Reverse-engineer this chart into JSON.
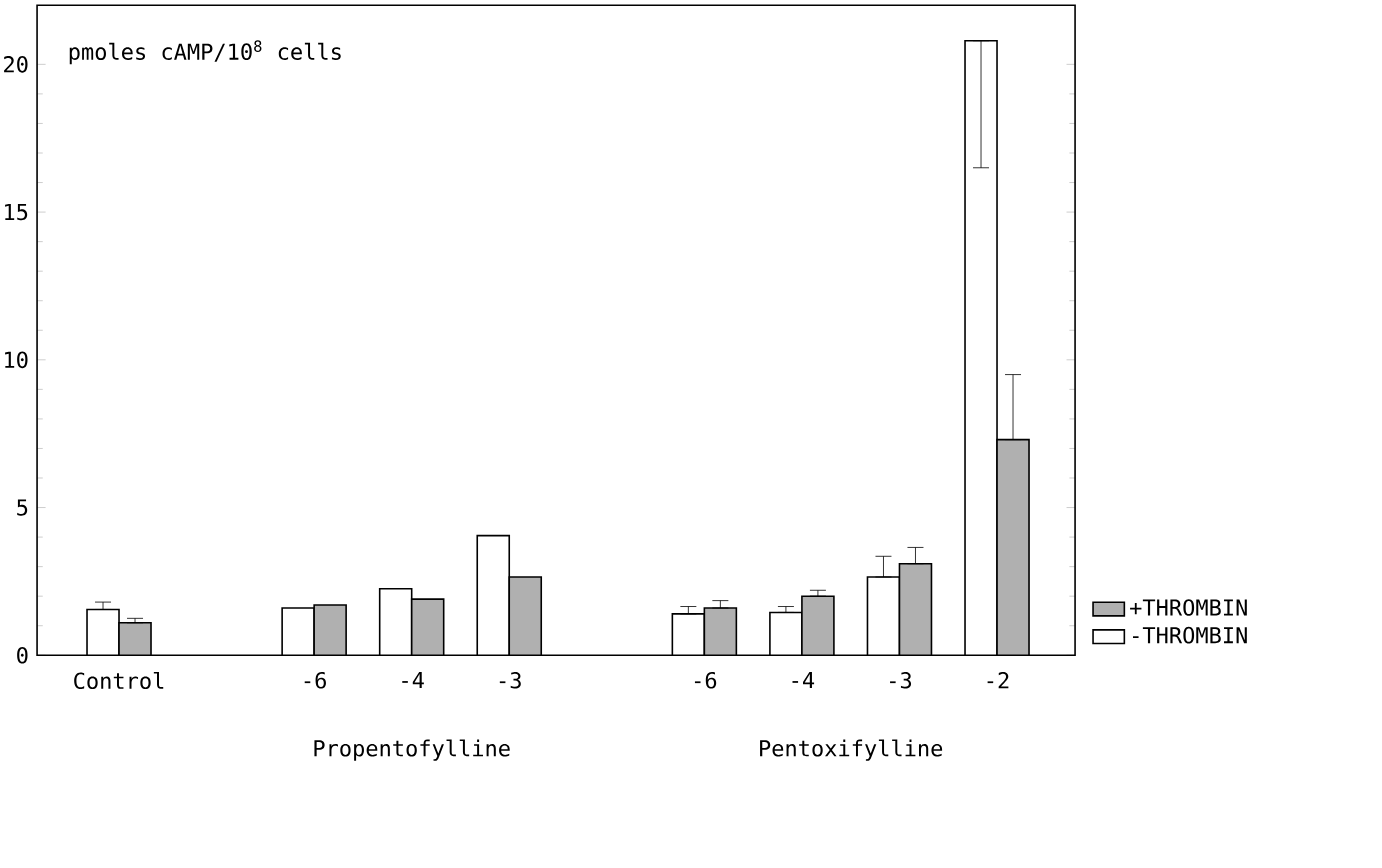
{
  "chart_data": {
    "type": "bar",
    "ylabel": "pmoles cAMP/10$^{8}$ cells",
    "categories": [
      "Control",
      null,
      "-6",
      "-4",
      "-3",
      null,
      "-6",
      "-4",
      "-3",
      "-2"
    ],
    "series": [
      {
        "name": "-THROMBIN",
        "color": "#ffffff",
        "values": [
          1.55,
          null,
          1.6,
          2.25,
          4.05,
          null,
          1.4,
          1.45,
          2.65,
          20.8
        ],
        "errors": [
          [
            1.55,
            1.8
          ],
          null,
          null,
          null,
          null,
          null,
          [
            1.4,
            1.65
          ],
          [
            1.45,
            1.65
          ],
          [
            2.65,
            3.35
          ],
          [
            16.5,
            20.8
          ]
        ]
      },
      {
        "name": "+THROMBIN",
        "color": "#b0b0b0",
        "values": [
          1.1,
          null,
          1.7,
          1.9,
          2.65,
          null,
          1.6,
          2.0,
          3.1,
          7.3
        ],
        "errors": [
          [
            1.1,
            1.25
          ],
          null,
          null,
          null,
          null,
          null,
          [
            1.6,
            1.85
          ],
          [
            2.0,
            2.2
          ],
          [
            3.1,
            3.65
          ],
          [
            7.3,
            9.5
          ]
        ]
      }
    ],
    "ylim": [
      0,
      22
    ],
    "yticks": [
      0,
      5,
      10,
      15,
      20
    ],
    "legend": "right",
    "grid": false,
    "annotations": [
      "Propentofylline",
      "Pentoxifylline"
    ]
  }
}
